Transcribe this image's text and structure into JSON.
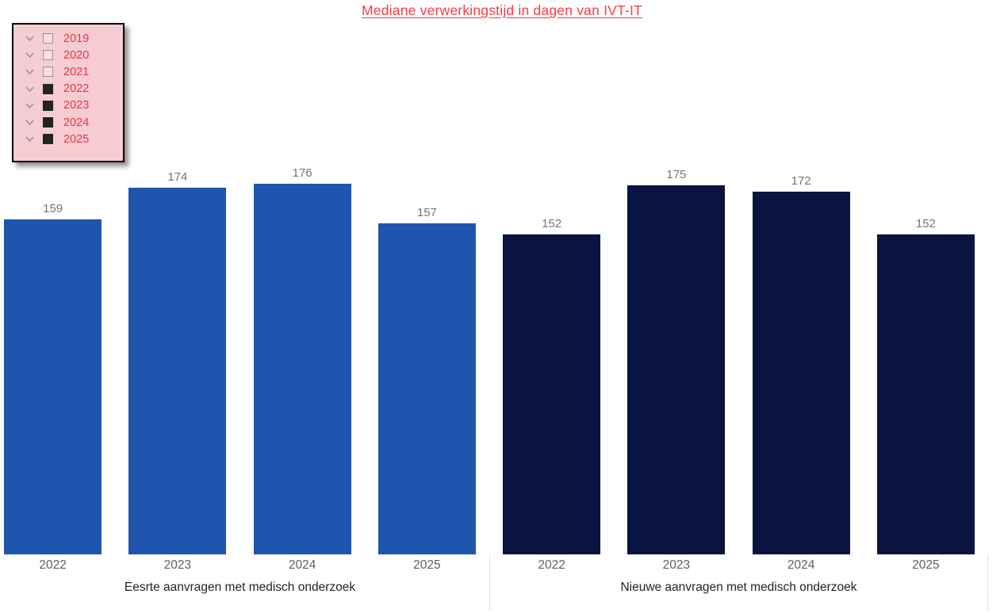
{
  "title": {
    "text": "Mediane verwerkingstijd in dagen van IVT-IT",
    "color": "#fa3b43"
  },
  "legend": {
    "background_color": "#f6ccd3",
    "label_color": "#e8353e",
    "chevron_icon": "chevron-down",
    "items": [
      {
        "label": "2019",
        "checked": false
      },
      {
        "label": "2020",
        "checked": false
      },
      {
        "label": "2021",
        "checked": false
      },
      {
        "label": "2022",
        "checked": true
      },
      {
        "label": "2023",
        "checked": true
      },
      {
        "label": "2024",
        "checked": true
      },
      {
        "label": "2025",
        "checked": true
      }
    ]
  },
  "chart_data": {
    "type": "bar",
    "title": "Mediane verwerkingstijd in dagen van IVT-IT",
    "categories": [
      "2022",
      "2023",
      "2024",
      "2025"
    ],
    "series": [
      {
        "name": "Eesrte aanvragen met medisch onderzoek",
        "values": [
          159,
          174,
          176,
          157
        ],
        "color": "#1f55af"
      },
      {
        "name": "Nieuwe aanvragen met medisch onderzoek",
        "values": [
          152,
          175,
          172,
          152
        ],
        "color": "#0a1440"
      }
    ],
    "ylim": [
      0,
      185
    ],
    "grid": false,
    "data_labels": true,
    "data_label_color": "#767476",
    "category_label_color": "#605e5c",
    "series_label_color": "#252423",
    "legend_position": "top-left"
  }
}
